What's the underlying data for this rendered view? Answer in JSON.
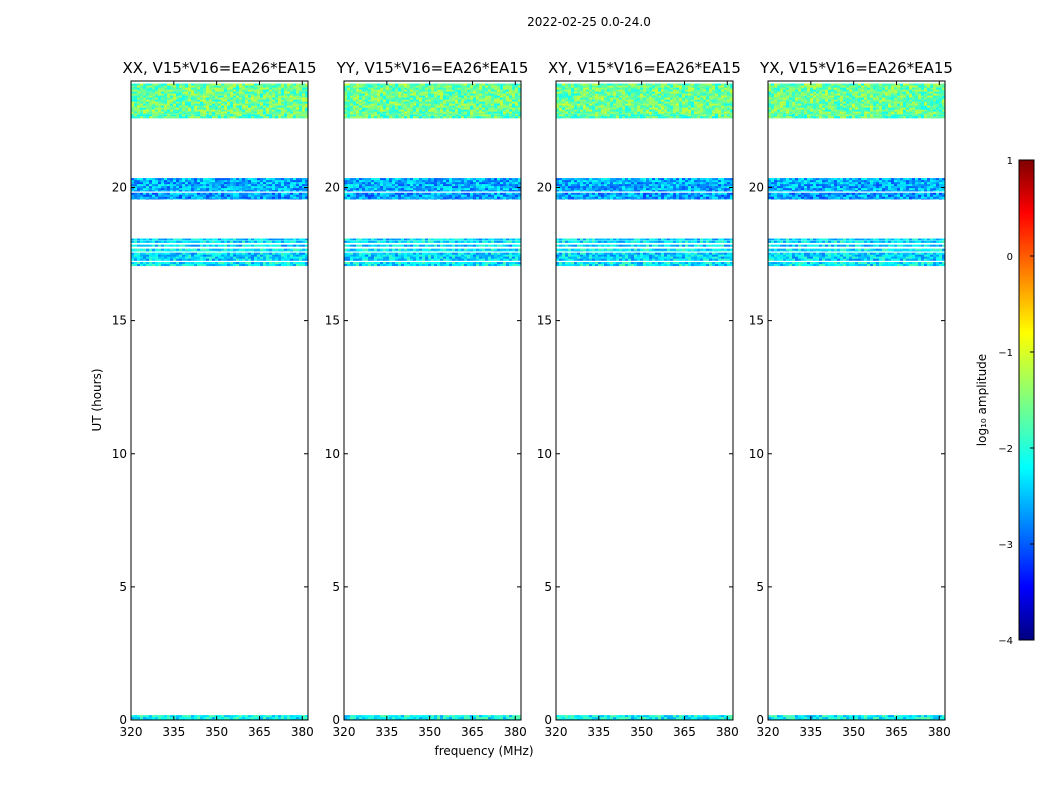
{
  "chart_data": {
    "type": "heatmap",
    "title": "2022-02-25 0.0-24.0",
    "xlabel": "frequency (MHz)",
    "ylabel": "UT (hours)",
    "xlim": [
      320,
      382
    ],
    "ylim": [
      0,
      24
    ],
    "x_ticks": [
      320,
      335,
      350,
      365,
      380
    ],
    "y_ticks": [
      0,
      5,
      10,
      15,
      20
    ],
    "panels": [
      {
        "title": "XX, V15*V16=EA26*EA15"
      },
      {
        "title": "YY, V15*V16=EA26*EA15"
      },
      {
        "title": "XY, V15*V16=EA26*EA15"
      },
      {
        "title": "YX, V15*V16=EA26*EA15"
      }
    ],
    "data_bands": [
      {
        "ut_start": 0.0,
        "ut_end": 0.18,
        "log_amplitude": -2.1
      },
      {
        "ut_start": 17.05,
        "ut_end": 17.2,
        "log_amplitude": -2.2
      },
      {
        "ut_start": 17.25,
        "ut_end": 17.55,
        "log_amplitude": -2.3
      },
      {
        "ut_start": 17.6,
        "ut_end": 17.7,
        "log_amplitude": -2.2
      },
      {
        "ut_start": 17.78,
        "ut_end": 17.85,
        "log_amplitude": -2.3
      },
      {
        "ut_start": 17.92,
        "ut_end": 18.0,
        "log_amplitude": -2.2
      },
      {
        "ut_start": 18.02,
        "ut_end": 18.08,
        "log_amplitude": -2.3
      },
      {
        "ut_start": 19.55,
        "ut_end": 19.8,
        "log_amplitude": -2.6
      },
      {
        "ut_start": 19.85,
        "ut_end": 20.35,
        "log_amplitude": -2.5
      },
      {
        "ut_start": 22.6,
        "ut_end": 22.75,
        "log_amplitude": -1.7
      },
      {
        "ut_start": 22.75,
        "ut_end": 23.9,
        "log_amplitude": -1.6
      }
    ],
    "colorbar": {
      "label": "log₁₀ amplitude",
      "min": -4,
      "max": 1,
      "ticks": [
        1,
        0,
        -1,
        -2,
        -3,
        -4
      ],
      "tick_labels": [
        "1",
        "0",
        "−1",
        "−2",
        "−3",
        "−4"
      ],
      "colormap": "jet"
    }
  }
}
